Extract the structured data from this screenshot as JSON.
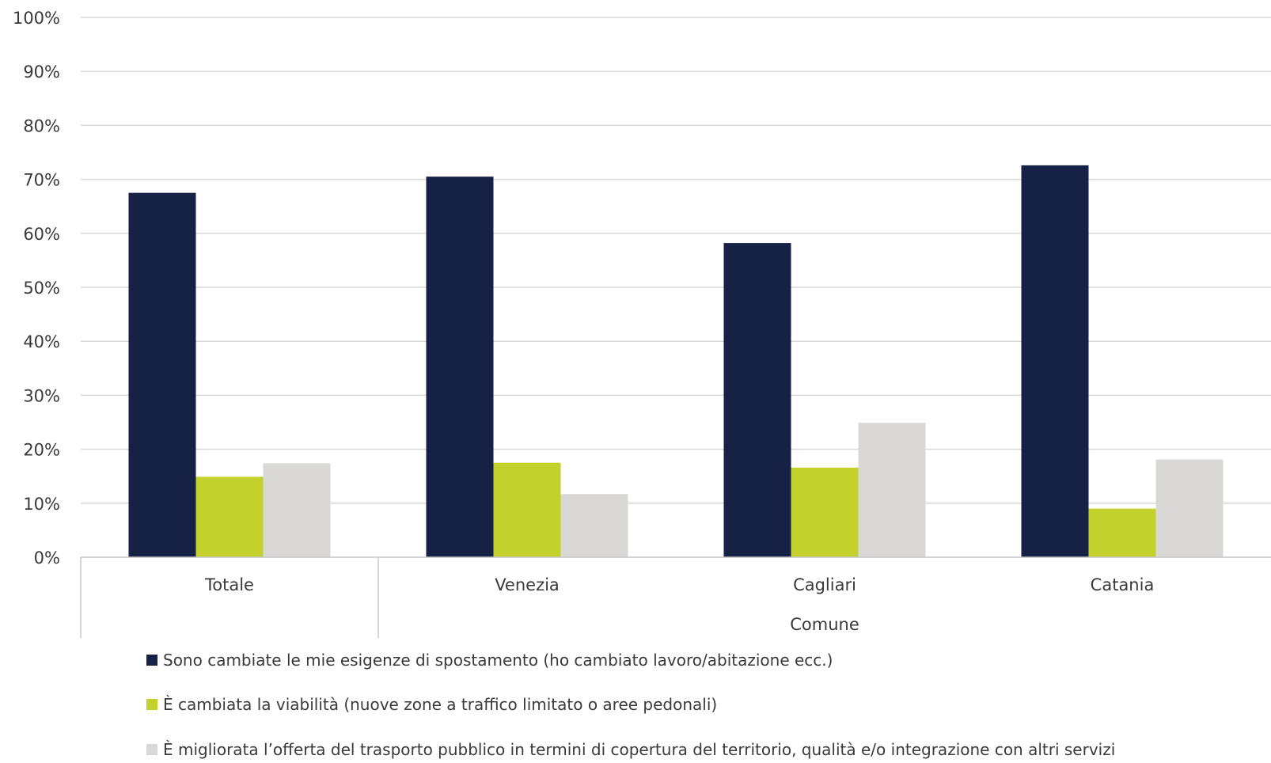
{
  "chart_data": {
    "type": "bar",
    "title": "",
    "xlabel": "Comune",
    "ylabel": "",
    "ylim": [
      0,
      100
    ],
    "yticks": [
      "0%",
      "10%",
      "20%",
      "30%",
      "40%",
      "50%",
      "60%",
      "70%",
      "80%",
      "90%",
      "100%"
    ],
    "categories": [
      "Totale",
      "Venezia",
      "Cagliari",
      "Catania"
    ],
    "group_label": "Comune",
    "grid": true,
    "legend_position": "bottom",
    "series": [
      {
        "name": "Sono cambiate le mie esigenze di spostamento (ho cambiato lavoro/abitazione ecc.)",
        "color": "#152145",
        "values": [
          67.5,
          70.5,
          58.2,
          72.6
        ]
      },
      {
        "name": "È cambiata la viabilità (nuove zone a traffico limitato o aree pedonali)",
        "color": "#c3d12c",
        "values": [
          14.9,
          17.5,
          16.6,
          9.0
        ]
      },
      {
        "name": "È migliorata l’offerta del trasporto pubblico in termini di copertura del territorio, qualità e/o integrazione con altri servizi",
        "color": "#d9d8d6",
        "values": [
          17.4,
          11.7,
          24.9,
          18.1
        ]
      }
    ]
  }
}
